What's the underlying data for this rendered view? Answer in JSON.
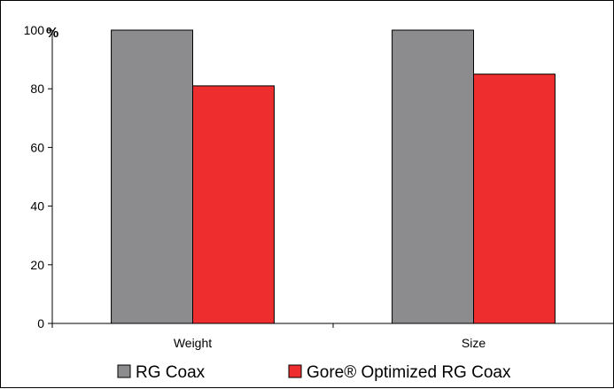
{
  "chart_data": {
    "type": "bar",
    "categories": [
      "Weight",
      "Size"
    ],
    "series": [
      {
        "name": "RG Coax",
        "values": [
          100,
          100
        ],
        "color": "#8c8c8f"
      },
      {
        "name": "Gore® Optimized RG Coax",
        "values": [
          81,
          85
        ],
        "color": "#ee2e2e"
      }
    ],
    "y_unit": "%",
    "ylim": [
      0,
      100
    ],
    "yticks": [
      "0",
      "20",
      "40",
      "60",
      "80",
      "100"
    ],
    "grid": false,
    "legend_position": "bottom"
  }
}
